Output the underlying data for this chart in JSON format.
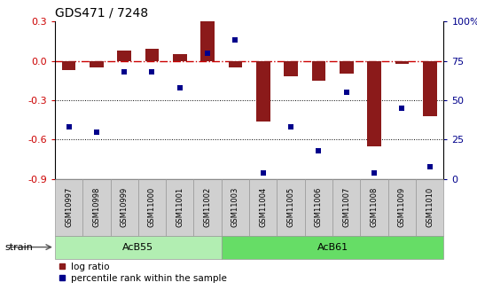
{
  "title": "GDS471 / 7248",
  "samples": [
    "GSM10997",
    "GSM10998",
    "GSM10999",
    "GSM11000",
    "GSM11001",
    "GSM11002",
    "GSM11003",
    "GSM11004",
    "GSM11005",
    "GSM11006",
    "GSM11007",
    "GSM11008",
    "GSM11009",
    "GSM11010"
  ],
  "log_ratio": [
    -0.07,
    -0.05,
    0.08,
    0.09,
    0.05,
    0.3,
    -0.05,
    -0.46,
    -0.12,
    -0.15,
    -0.1,
    -0.65,
    -0.02,
    -0.42
  ],
  "percentile": [
    33,
    30,
    68,
    68,
    58,
    80,
    88,
    4,
    33,
    18,
    55,
    4,
    45,
    8
  ],
  "ylim_left": [
    -0.9,
    0.3
  ],
  "ylim_right": [
    0,
    100
  ],
  "yticks_left": [
    0.3,
    0.0,
    -0.3,
    -0.6,
    -0.9
  ],
  "yticks_right": [
    100,
    75,
    50,
    25,
    0
  ],
  "bar_color": "#8B1A1A",
  "dot_color": "#00008B",
  "hline_color": "#CC0000",
  "dotline_color": "#000000",
  "groups": [
    {
      "label": "AcB55",
      "start": 0,
      "end": 5,
      "color": "#B2EEB2"
    },
    {
      "label": "AcB61",
      "start": 6,
      "end": 13,
      "color": "#66DD66"
    }
  ],
  "strain_label": "strain",
  "legend_bar": "log ratio",
  "legend_dot": "percentile rank within the sample",
  "background_color": "#FFFFFF",
  "plot_bg": "#FFFFFF",
  "label_box_color": "#D0D0D0",
  "label_box_edge": "#999999"
}
